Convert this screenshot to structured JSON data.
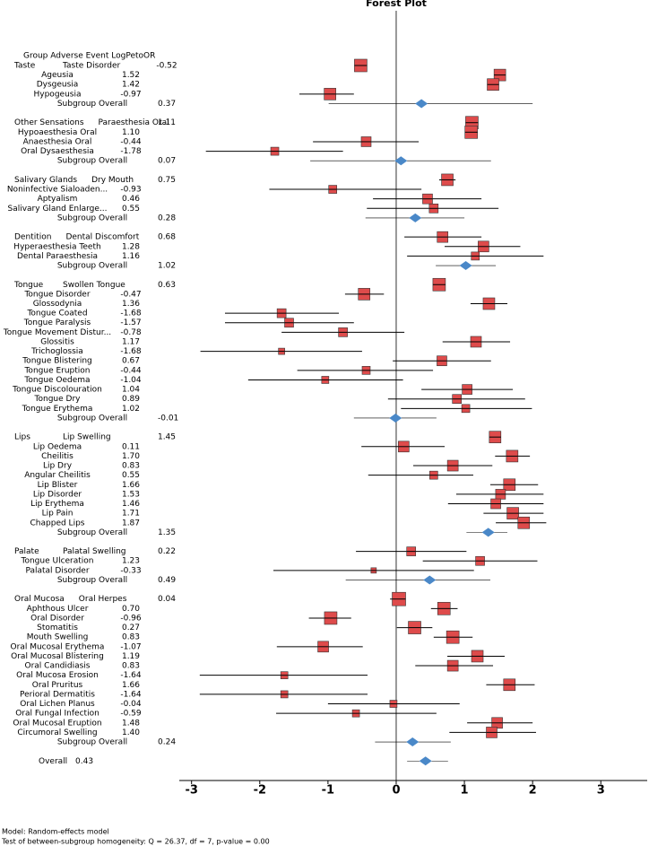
{
  "chart_data": {
    "type": "forest",
    "title": "Forest Plot",
    "header": "Group Adverse Event LogPetoOR",
    "footnotes": [
      "Model: Random-effects model",
      "Test of between-subgroup homogeneity: Q = 26.37, df = 7, p-value = 0.00"
    ],
    "xlim": [
      -3.18,
      3.68
    ],
    "xticks": [
      -3,
      -2,
      -1,
      0,
      1,
      2,
      3
    ],
    "box_color": "#de4b4b",
    "diamond_color": "#4a88c8",
    "groups": [
      {
        "name": "Taste",
        "rows": [
          {
            "event": "Taste Disorder",
            "estimate": -0.52,
            "lower": -0.6,
            "upper": -0.43,
            "weight": 14
          },
          {
            "event": "Ageusia",
            "estimate": 1.52,
            "lower": 1.45,
            "upper": 1.6,
            "weight": 13
          },
          {
            "event": "Dysgeusia",
            "estimate": 1.42,
            "lower": 1.34,
            "upper": 1.5,
            "weight": 13
          },
          {
            "event": "Hypogeusia",
            "estimate": -0.97,
            "lower": -1.42,
            "upper": -0.62,
            "weight": 13
          }
        ],
        "subgroup": {
          "label": "Subgroup Overall",
          "estimate": 0.37,
          "lower": -0.99,
          "upper": 2.0
        }
      },
      {
        "name": "Other Sensations",
        "rows": [
          {
            "event": "Paraesthesia Oral",
            "estimate": 1.11,
            "lower": 1.05,
            "upper": 1.18,
            "weight": 14
          },
          {
            "event": "Hypoaesthesia Oral",
            "estimate": 1.1,
            "estimate_label": "1.10",
            "lower": 1.03,
            "upper": 1.17,
            "weight": 14
          },
          {
            "event": "Anaesthesia Oral",
            "estimate": -0.44,
            "lower": -1.22,
            "upper": 0.33,
            "weight": 11
          },
          {
            "event": "Oral Dysaesthesia",
            "estimate": -1.78,
            "lower": -2.79,
            "upper": -0.78,
            "weight": 9
          }
        ],
        "subgroup": {
          "label": "Subgroup Overall",
          "estimate": 0.07,
          "lower": -1.26,
          "upper": 1.39
        }
      },
      {
        "name": "Salivary Glands",
        "rows": [
          {
            "event": "Dry Mouth",
            "estimate": 0.75,
            "lower": 0.63,
            "upper": 0.87,
            "weight": 13
          },
          {
            "event": "Noninfective Sialoaden...",
            "estimate": -0.93,
            "lower": -1.86,
            "upper": 0.37,
            "weight": 9
          },
          {
            "event": "Aptyalism",
            "estimate": 0.46,
            "lower": -0.34,
            "upper": 1.25,
            "weight": 11
          },
          {
            "event": "Salivary Gland Enlarge...",
            "estimate": 0.55,
            "lower": -0.43,
            "upper": 1.5,
            "weight": 10
          }
        ],
        "subgroup": {
          "label": "Subgroup Overall",
          "estimate": 0.28,
          "lower": -0.45,
          "upper": 1.0
        }
      },
      {
        "name": "Dentition",
        "rows": [
          {
            "event": "Dental Discomfort",
            "estimate": 0.68,
            "lower": 0.12,
            "upper": 1.25,
            "weight": 12
          },
          {
            "event": "Hyperaesthesia Teeth",
            "estimate": 1.28,
            "lower": 0.71,
            "upper": 1.82,
            "weight": 12
          },
          {
            "event": "Dental Paraesthesia",
            "estimate": 1.16,
            "lower": 0.16,
            "upper": 2.16,
            "weight": 9
          }
        ],
        "subgroup": {
          "label": "Subgroup Overall",
          "estimate": 1.02,
          "lower": 0.58,
          "upper": 1.46
        }
      },
      {
        "name": "Tongue",
        "rows": [
          {
            "event": "Swollen Tongue",
            "estimate": 0.63,
            "lower": 0.55,
            "upper": 0.72,
            "weight": 14
          },
          {
            "event": "Tongue Disorder",
            "estimate": -0.47,
            "lower": -0.75,
            "upper": -0.18,
            "weight": 13
          },
          {
            "event": "Glossodynia",
            "estimate": 1.36,
            "lower": 1.09,
            "upper": 1.63,
            "weight": 13
          },
          {
            "event": "Tongue Coated",
            "estimate": -1.68,
            "lower": -2.51,
            "upper": -0.84,
            "weight": 10
          },
          {
            "event": "Tongue Paralysis",
            "estimate": -1.57,
            "lower": -2.51,
            "upper": -0.62,
            "weight": 10
          },
          {
            "event": "Tongue Movement Distur...",
            "estimate": -0.78,
            "lower": -1.68,
            "upper": 0.12,
            "weight": 10
          },
          {
            "event": "Glossitis",
            "estimate": 1.17,
            "lower": 0.68,
            "upper": 1.67,
            "weight": 12
          },
          {
            "event": "Trichoglossia",
            "estimate": -1.68,
            "lower": -2.87,
            "upper": -0.5,
            "weight": 7
          },
          {
            "event": "Tongue Blistering",
            "estimate": 0.67,
            "lower": -0.05,
            "upper": 1.39,
            "weight": 11
          },
          {
            "event": "Tongue Eruption",
            "estimate": -0.44,
            "lower": -1.45,
            "upper": 0.54,
            "weight": 9
          },
          {
            "event": "Tongue Oedema",
            "estimate": -1.04,
            "lower": -2.17,
            "upper": 0.1,
            "weight": 8
          },
          {
            "event": "Tongue Discolouration",
            "estimate": 1.04,
            "lower": 0.37,
            "upper": 1.71,
            "weight": 11
          },
          {
            "event": "Tongue Dry",
            "estimate": 0.89,
            "lower": -0.12,
            "upper": 1.89,
            "weight": 10
          },
          {
            "event": "Tongue Erythema",
            "estimate": 1.02,
            "lower": 0.07,
            "upper": 1.99,
            "weight": 9
          }
        ],
        "subgroup": {
          "label": "Subgroup Overall",
          "estimate": -0.01,
          "lower": -0.62,
          "upper": 0.59
        }
      },
      {
        "name": "Lips",
        "rows": [
          {
            "event": "Lip Swelling",
            "estimate": 1.45,
            "lower": 1.37,
            "upper": 1.53,
            "weight": 13
          },
          {
            "event": "Lip Oedema",
            "estimate": 0.11,
            "lower": -0.51,
            "upper": 0.71,
            "weight": 12
          },
          {
            "event": "Cheilitis",
            "estimate": 1.7,
            "estimate_label": "1.70",
            "lower": 1.45,
            "upper": 1.96,
            "weight": 13
          },
          {
            "event": "Lip Dry",
            "estimate": 0.83,
            "lower": 0.25,
            "upper": 1.41,
            "weight": 12
          },
          {
            "event": "Angular Cheilitis",
            "estimate": 0.55,
            "lower": -0.41,
            "upper": 1.13,
            "weight": 9
          },
          {
            "event": "Lip Blister",
            "estimate": 1.66,
            "lower": 1.38,
            "upper": 2.08,
            "weight": 13
          },
          {
            "event": "Lip Disorder",
            "estimate": 1.53,
            "lower": 0.88,
            "upper": 2.16,
            "weight": 11
          },
          {
            "event": "Lip Erythema",
            "estimate": 1.46,
            "lower": 0.76,
            "upper": 2.16,
            "weight": 11
          },
          {
            "event": "Lip Pain",
            "estimate": 1.71,
            "lower": 1.28,
            "upper": 2.16,
            "weight": 13
          },
          {
            "event": "Chapped Lips",
            "estimate": 1.87,
            "lower": 1.46,
            "upper": 2.2,
            "weight": 13
          }
        ],
        "subgroup": {
          "label": "Subgroup Overall",
          "estimate": 1.35,
          "lower": 1.03,
          "upper": 1.63
        }
      },
      {
        "name": "Palate",
        "rows": [
          {
            "event": "Palatal Swelling",
            "estimate": 0.22,
            "lower": -0.59,
            "upper": 1.03,
            "weight": 10
          },
          {
            "event": "Tongue Ulceration",
            "estimate": 1.23,
            "lower": 0.39,
            "upper": 2.07,
            "weight": 10
          },
          {
            "event": "Palatal Disorder",
            "estimate": -0.33,
            "lower": -1.8,
            "upper": 1.14,
            "weight": 6
          }
        ],
        "subgroup": {
          "label": "Subgroup Overall",
          "estimate": 0.49,
          "lower": -0.74,
          "upper": 1.38
        }
      },
      {
        "name": "Oral Mucosa",
        "rows": [
          {
            "event": "Oral Herpes",
            "estimate": 0.04,
            "lower": -0.09,
            "upper": 0.13,
            "weight": 15
          },
          {
            "event": "Aphthous Ulcer",
            "estimate": 0.7,
            "estimate_label": "0.70",
            "lower": 0.51,
            "upper": 0.9,
            "weight": 14
          },
          {
            "event": "Oral Disorder",
            "estimate": -0.96,
            "lower": -1.28,
            "upper": -0.66,
            "weight": 14
          },
          {
            "event": "Stomatitis",
            "estimate": 0.27,
            "lower": 0.01,
            "upper": 0.53,
            "weight": 14
          },
          {
            "event": "Mouth Swelling",
            "estimate": 0.83,
            "lower": 0.55,
            "upper": 1.12,
            "weight": 14
          },
          {
            "event": "Oral Mucosal Erythema",
            "estimate": -1.07,
            "lower": -1.75,
            "upper": -0.49,
            "weight": 12
          },
          {
            "event": "Oral Mucosal Blistering",
            "estimate": 1.19,
            "lower": 0.75,
            "upper": 1.59,
            "weight": 13
          },
          {
            "event": "Oral Candidiasis",
            "estimate": 0.83,
            "lower": 0.28,
            "upper": 1.42,
            "weight": 12
          },
          {
            "event": "Oral Mucosa Erosion",
            "estimate": -1.64,
            "lower": -2.88,
            "upper": -0.42,
            "weight": 8
          },
          {
            "event": "Oral Pruritus",
            "estimate": 1.66,
            "lower": 1.32,
            "upper": 2.03,
            "weight": 13
          },
          {
            "event": "Perioral Dermatitis",
            "estimate": -1.64,
            "lower": -2.88,
            "upper": -0.42,
            "weight": 8
          },
          {
            "event": "Oral Lichen Planus",
            "estimate": -0.04,
            "lower": -1.0,
            "upper": 0.93,
            "weight": 8
          },
          {
            "event": "Oral Fungal Infection",
            "estimate": -0.59,
            "lower": -1.76,
            "upper": 0.59,
            "weight": 8
          },
          {
            "event": "Oral Mucosal Eruption",
            "estimate": 1.48,
            "lower": 1.04,
            "upper": 2.0,
            "weight": 12
          },
          {
            "event": "Circumoral Swelling",
            "estimate": 1.4,
            "estimate_label": "1.40",
            "lower": 0.78,
            "upper": 2.05,
            "weight": 12
          }
        ],
        "subgroup": {
          "label": "Subgroup Overall",
          "estimate": 0.24,
          "lower": -0.31,
          "upper": 0.8
        }
      }
    ],
    "overall": {
      "label": "Overall",
      "estimate": 0.43,
      "lower": 0.16,
      "upper": 0.76
    }
  }
}
